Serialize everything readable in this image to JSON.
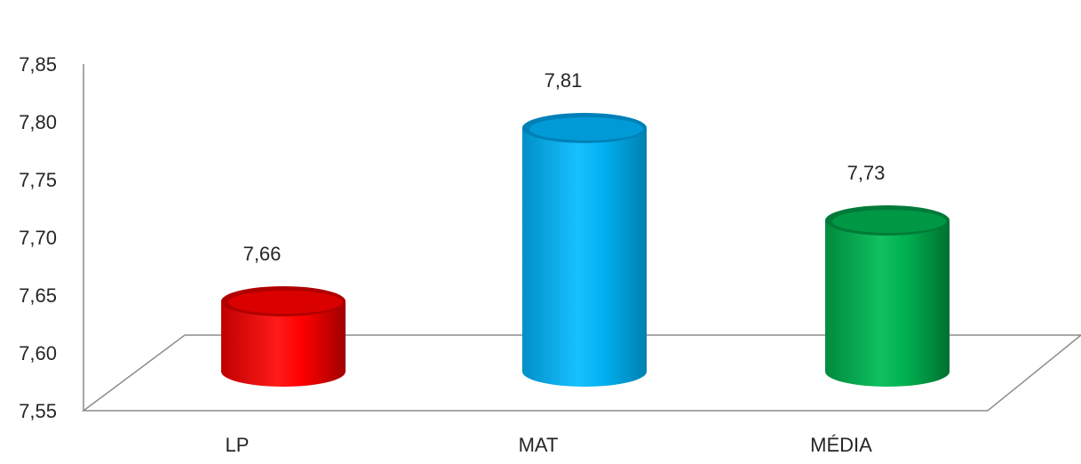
{
  "chart_data": {
    "type": "bar",
    "style": "3d-cylinder",
    "categories": [
      "LP",
      "MAT",
      "MÉDIA"
    ],
    "values": [
      7.66,
      7.81,
      7.73
    ],
    "data_labels": [
      "7,66",
      "7,81",
      "7,73"
    ],
    "colors": [
      "#ff0000",
      "#00b0f0",
      "#00b050"
    ],
    "title": "",
    "xlabel": "",
    "ylabel": "",
    "ylim": [
      7.55,
      7.85
    ],
    "yticks": [
      7.55,
      7.6,
      7.65,
      7.7,
      7.75,
      7.8,
      7.85
    ],
    "ytick_labels": [
      "7,55",
      "7,60",
      "7,65",
      "7,70",
      "7,75",
      "7,80",
      "7,85"
    ],
    "grid": false,
    "legend": "none"
  }
}
